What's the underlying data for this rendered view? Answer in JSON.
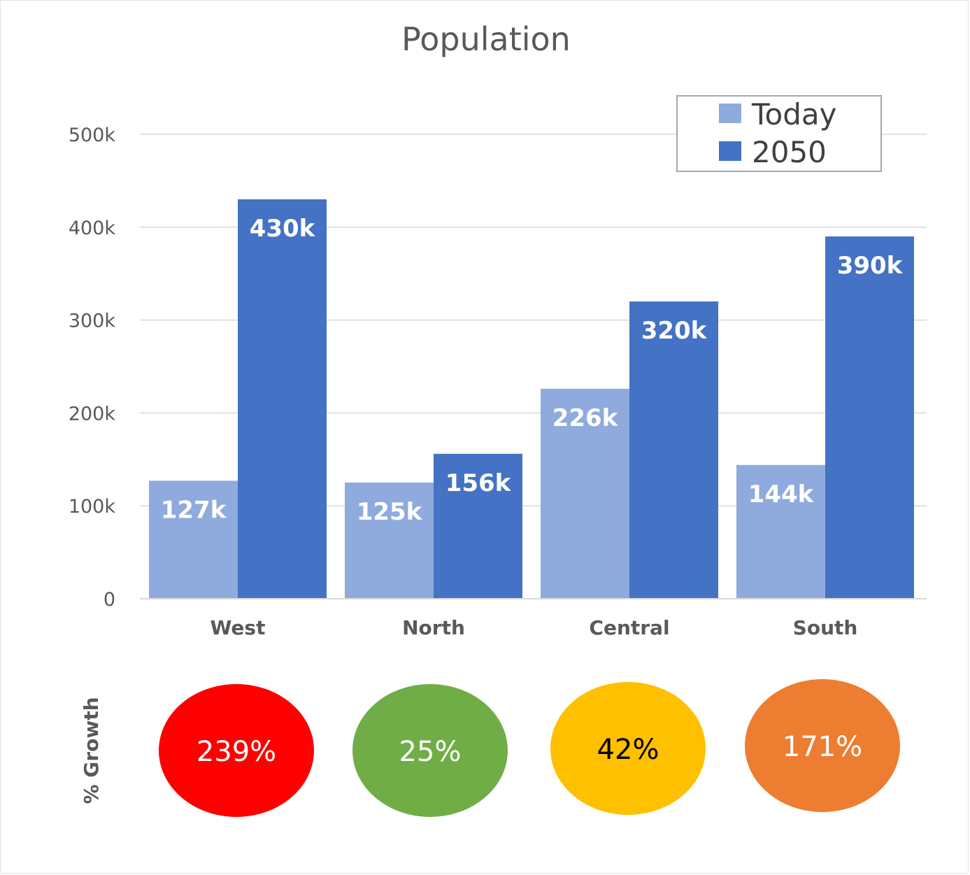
{
  "chart_data": {
    "type": "bar",
    "title": "Population",
    "categories": [
      "West",
      "North",
      "Central",
      "South"
    ],
    "series": [
      {
        "name": "Today",
        "values": [
          127000,
          125000,
          226000,
          144000
        ],
        "labels": [
          "127k",
          "125k",
          "226k",
          "144k"
        ],
        "color": "#8faadc"
      },
      {
        "name": "2050",
        "values": [
          430000,
          156000,
          320000,
          390000
        ],
        "labels": [
          "430k",
          "156k",
          "320k",
          "390k"
        ],
        "color": "#4472c4"
      }
    ],
    "ylim": [
      0,
      500000
    ],
    "yticks": [
      {
        "value": 0,
        "label": "0"
      },
      {
        "value": 100000,
        "label": "100k"
      },
      {
        "value": 200000,
        "label": "200k"
      },
      {
        "value": 300000,
        "label": "300k"
      },
      {
        "value": 400000,
        "label": "400k"
      },
      {
        "value": 500000,
        "label": "500k"
      }
    ],
    "grid": true,
    "legend_position": "top-right"
  },
  "growth": {
    "axis_label": "% Growth",
    "items": [
      {
        "category": "West",
        "value": 239,
        "label": "239%",
        "color": "#ff0000",
        "text_color": "#ffffff"
      },
      {
        "category": "North",
        "value": 25,
        "label": "25%",
        "color": "#70ad47",
        "text_color": "#ffffff"
      },
      {
        "category": "Central",
        "value": 42,
        "label": "42%",
        "color": "#ffc000",
        "text_color": "#000000"
      },
      {
        "category": "South",
        "value": 171,
        "label": "171%",
        "color": "#ed7d31",
        "text_color": "#ffffff"
      }
    ]
  },
  "colors": {
    "gridline": "#d9d9d9",
    "axis_text": "#595959"
  }
}
